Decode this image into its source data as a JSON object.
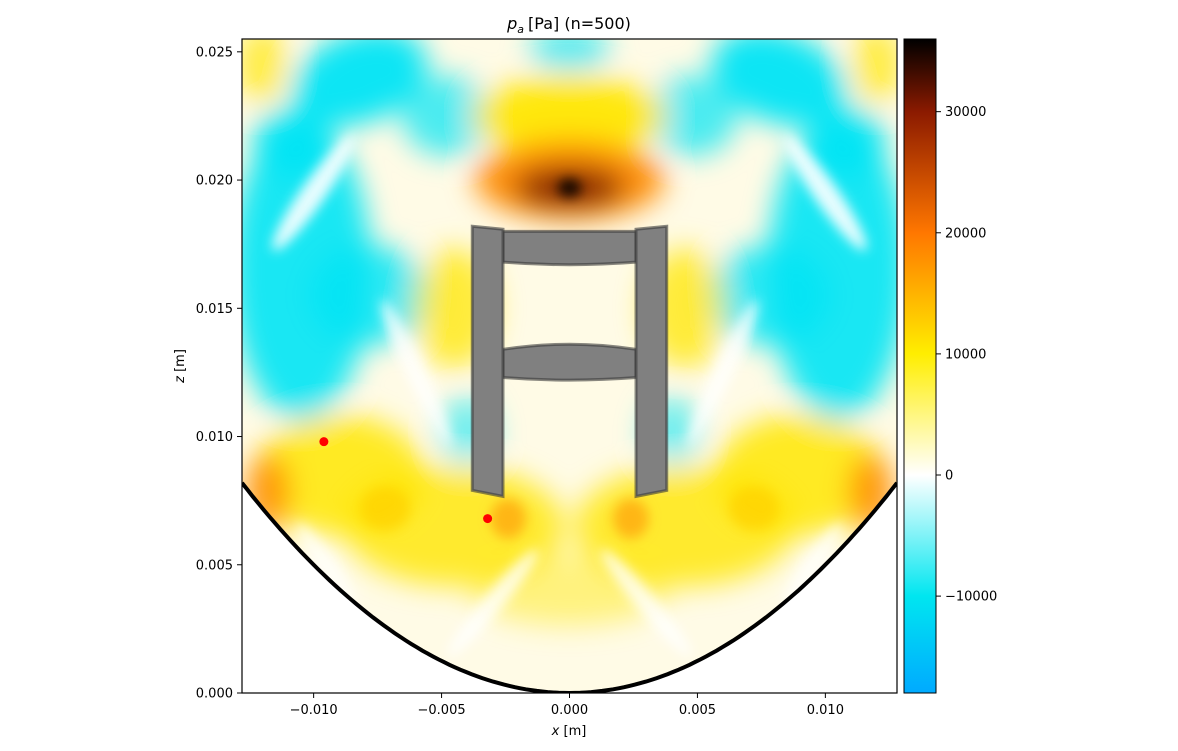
{
  "chart_data": {
    "type": "heatmap",
    "title": "[Pa] (n=500)",
    "title_symbol": "p",
    "title_subscript": "a",
    "xlabel_symbol": "x",
    "xlabel_unit": "[m]",
    "ylabel_symbol": "z",
    "ylabel_unit": "[m]",
    "xlim": [
      -0.0128,
      0.0128
    ],
    "ylim": [
      0.0,
      0.0255
    ],
    "x_ticks": [
      -0.01,
      -0.005,
      0.0,
      0.005,
      0.01
    ],
    "x_tick_labels": [
      "−0.010",
      "−0.005",
      "0.000",
      "0.005",
      "0.010"
    ],
    "y_ticks": [
      0.0,
      0.005,
      0.01,
      0.015,
      0.02,
      0.025
    ],
    "y_tick_labels": [
      "0.000",
      "0.005",
      "0.010",
      "0.015",
      "0.020",
      "0.025"
    ],
    "colorbar": {
      "range": [
        -18000,
        36000
      ],
      "ticks": [
        -10000,
        0,
        10000,
        20000,
        30000
      ],
      "tick_labels": [
        "−10000",
        "0",
        "10000",
        "20000",
        "30000"
      ],
      "colors": [
        "#00aaff",
        "#00e6f0",
        "#ffffff",
        "#ffee00",
        "#ff7700",
        "#8b1a00",
        "#000000"
      ]
    },
    "reflector_parabola_a": 50,
    "scatter_points": [
      {
        "x": -0.0096,
        "z": 0.0098,
        "color": "#ff0000"
      },
      {
        "x": -0.0032,
        "z": 0.0068,
        "color": "#ff0000"
      }
    ],
    "holder": {
      "color": "#808080",
      "left_leg": {
        "x0": -0.0038,
        "x1": -0.0026,
        "z0": 0.0079,
        "z1": 0.0182
      },
      "right_leg": {
        "x0": 0.0026,
        "x1": 0.0038,
        "z0": 0.0079,
        "z1": 0.0182
      },
      "upper_bar": {
        "z_top": 0.018,
        "z_bottom": 0.0168,
        "z_bottom_center": 0.0167
      },
      "lower_bar": {
        "z_top": 0.0134,
        "z_top_center": 0.0136,
        "z_bottom": 0.0123,
        "z_bottom_center": 0.0122
      }
    }
  }
}
